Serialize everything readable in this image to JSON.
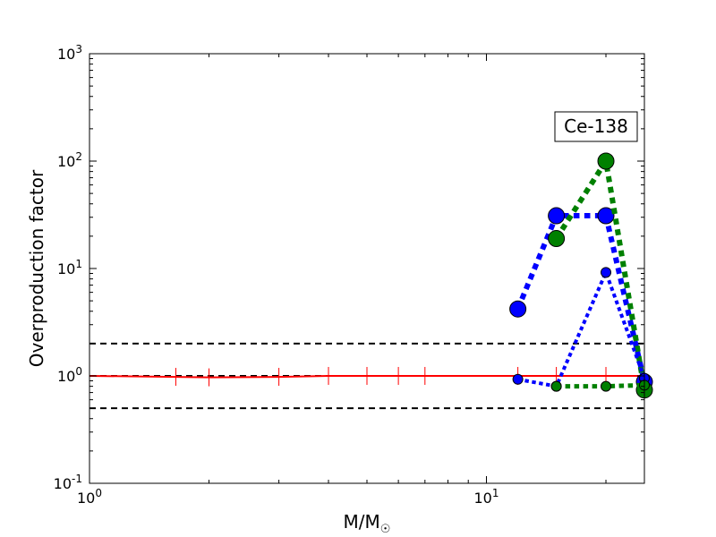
{
  "chart_data": {
    "type": "line",
    "xscale": "log",
    "yscale": "log",
    "xlim": [
      1,
      25
    ],
    "ylim": [
      0.1,
      1000
    ],
    "xlabel": "M/M",
    "xlabel_sub": "☉",
    "ylabel": "Overproduction factor",
    "x_ticks": [
      {
        "value": 1,
        "base": "10",
        "exp": "0"
      },
      {
        "value": 10,
        "base": "10",
        "exp": "1"
      }
    ],
    "y_ticks": [
      {
        "value": 0.1,
        "base": "10",
        "exp": "-1"
      },
      {
        "value": 1,
        "base": "10",
        "exp": "0"
      },
      {
        "value": 10,
        "base": "10",
        "exp": "1"
      },
      {
        "value": 100,
        "base": "10",
        "exp": "2"
      },
      {
        "value": 1000,
        "base": "10",
        "exp": "3"
      }
    ],
    "annotation": "Ce-138",
    "reference_lines": [
      {
        "y": 2,
        "style": "dashed",
        "color": "#000000"
      },
      {
        "y": 1,
        "style": "dashed",
        "color": "#000000"
      },
      {
        "y": 0.5,
        "style": "dashed",
        "color": "#000000"
      }
    ],
    "series": [
      {
        "color": "#ff0000",
        "marker": "vline",
        "line": "solid",
        "width": 2,
        "x": [
          1,
          1.65,
          2,
          3,
          4,
          5,
          6,
          7,
          12,
          15,
          20,
          25
        ],
        "y": [
          1,
          0.98,
          0.97,
          0.98,
          1,
          1,
          1,
          1,
          1,
          1,
          1,
          1
        ]
      },
      {
        "color": "#0000ff",
        "marker": "large-circle",
        "line": "dotted",
        "width": 6,
        "x": [
          12,
          15,
          20,
          25
        ],
        "y": [
          4.2,
          31,
          31,
          0.88
        ]
      },
      {
        "color": "#008000",
        "marker": "large-circle",
        "line": "dotted",
        "width": 6,
        "x": [
          15,
          20,
          25
        ],
        "y": [
          19,
          100,
          0.74
        ]
      },
      {
        "color": "#0000ff",
        "marker": "small-circle",
        "line": "dotted",
        "width": 4,
        "x": [
          12,
          15,
          20,
          25
        ],
        "y": [
          0.93,
          0.8,
          9.2,
          0.95
        ]
      },
      {
        "color": "#008000",
        "marker": "small-circle",
        "line": "dotted",
        "width": 5,
        "x": [
          15,
          20,
          25
        ],
        "y": [
          0.8,
          0.8,
          0.82
        ]
      }
    ]
  }
}
